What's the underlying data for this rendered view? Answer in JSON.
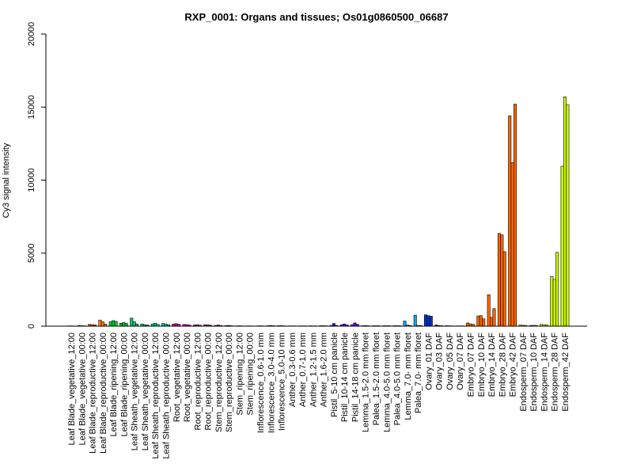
{
  "chart_data": {
    "type": "bar",
    "title": "RXP_0001: Organs and tissues; Os01g0860500_06687",
    "ylabel": "Cy3 signal intensity",
    "xlabel": "",
    "ylim": [
      0,
      20000
    ],
    "yticks": [
      0,
      5000,
      10000,
      15000,
      20000
    ],
    "grid": false,
    "legend": "none",
    "categories": [
      "Leaf Blade_vegetative_12:00",
      "Leaf Blade_vegetative_00:00",
      "Leaf Blade_reproductive_12:00",
      "Leaf Blade_reproductive_00:00",
      "Leaf Blade_ripening_12:00",
      "Leaf Blade_ripening_00:00",
      "Leaf Sheath_vegetative_12:00",
      "Leaf Sheath_vegetative_00:00",
      "Leaf Sheath_reproductive_12:00",
      "Leaf Sheath_reproductive_00:00",
      "Root_vegetative_12:00",
      "Root_vegetative_00:00",
      "Root_reproductive_12:00",
      "Root_reproductive_00:00",
      "Stem_reproductive_12:00",
      "Stem_reproductive_00:00",
      "Stem_ripening_12:00",
      "Stem_ripening_00:00",
      "Inflorescence_0.6-1.0 mm",
      "Inflorescence_3.0-4.0 mm",
      "Inflorescence_5.0-10 mm",
      "Anther_0.3-0.6 mm",
      "Anther_0.7-1.0 mm",
      "Anther_1.2-1.5 mm",
      "Anther_1.6-2.0 mm",
      "Pistil_5-10 cm panicle",
      "Pistil_10-14 cm panicle",
      "Pistil_14-18 cm panicle",
      "Lemma_1.5-2.0 mm floret",
      "Palea_1.5-2.0 mm floret",
      "Lemma_4.0-5.0 mm floret",
      "Palea_4.0-5.0 mm floret",
      "Lemma_7.0- mm floret",
      "Palea_7.0- mm floret",
      "Ovary_01 DAF",
      "Ovary_03 DAF",
      "Ovary_05 DAF",
      "Ovary_07 DAF",
      "Embryo_07 DAF",
      "Embryo_10 DAF",
      "Embryo_14 DAF",
      "Embryo_28 DAF",
      "Embryo_42 DAF",
      "Endosperm_07 DAF",
      "Endosperm_10 DAF",
      "Endosperm_14 DAF",
      "Endosperm_28 DAF",
      "Endosperm_42 DAF"
    ],
    "values": [
      [
        20,
        20,
        15
      ],
      [
        40,
        30,
        25
      ],
      [
        120,
        100,
        90
      ],
      [
        420,
        300,
        150
      ],
      [
        300,
        380,
        330
      ],
      [
        200,
        250,
        180
      ],
      [
        550,
        300,
        150
      ],
      [
        150,
        100,
        80
      ],
      [
        150,
        200,
        120
      ],
      [
        180,
        150,
        100
      ],
      [
        150,
        170,
        130
      ],
      [
        120,
        100,
        80
      ],
      [
        80,
        100,
        70
      ],
      [
        100,
        90,
        60
      ],
      [
        50,
        80,
        40
      ],
      [
        40,
        50,
        30
      ],
      [
        20,
        30,
        20
      ],
      [
        20,
        20,
        15
      ],
      [
        20,
        25,
        20
      ],
      [
        30,
        40,
        30
      ],
      [
        30,
        30,
        25
      ],
      [
        20,
        20,
        20
      ],
      [
        20,
        20,
        20
      ],
      [
        25,
        20,
        20
      ],
      [
        30,
        30,
        25
      ],
      [
        50,
        180,
        50
      ],
      [
        100,
        150,
        80
      ],
      [
        100,
        220,
        120
      ],
      [
        30,
        40,
        30
      ],
      [
        30,
        30,
        30
      ],
      [
        30,
        30,
        30
      ],
      [
        30,
        30,
        30
      ],
      [
        350,
        80,
        50
      ],
      [
        750,
        50,
        40
      ],
      [
        780,
        720,
        680
      ],
      [
        80,
        40,
        30
      ],
      [
        30,
        25,
        20
      ],
      [
        20,
        20,
        20
      ],
      [
        220,
        160,
        120
      ],
      [
        700,
        720,
        500
      ],
      [
        2150,
        600,
        1200
      ],
      [
        6350,
        6250,
        5100
      ],
      [
        14400,
        11200,
        15200
      ],
      [
        80,
        60,
        50
      ],
      [
        50,
        60,
        50
      ],
      [
        120,
        100,
        80
      ],
      [
        3400,
        3200,
        5050
      ],
      [
        10950,
        15700,
        15150
      ]
    ],
    "colors": [
      "#ff0000",
      "#ff2a00",
      "#ff5500",
      "#ff8000",
      "#00cc33",
      "#00cc33",
      "#00cc66",
      "#00cc66",
      "#00cc99",
      "#00cc99",
      "#cc00cc",
      "#cc00cc",
      "#cc0099",
      "#cc0099",
      "#cc0066",
      "#cc0066",
      "#cc0033",
      "#cc0033",
      "#3300ff",
      "#3300ff",
      "#3300ff",
      "#2200ff",
      "#2200ff",
      "#2200ff",
      "#2200ff",
      "#3300ff",
      "#5500ff",
      "#6600ff",
      "#00aaff",
      "#00aaff",
      "#00aaff",
      "#00aaff",
      "#00aaff",
      "#00aaff",
      "#0033cc",
      "#0033cc",
      "#0033cc",
      "#0033cc",
      "#ff6600",
      "#ff6600",
      "#ff6600",
      "#ff6600",
      "#ff6600",
      "#ccff00",
      "#ccff00",
      "#ccff00",
      "#ccff00",
      "#ccff00"
    ]
  }
}
